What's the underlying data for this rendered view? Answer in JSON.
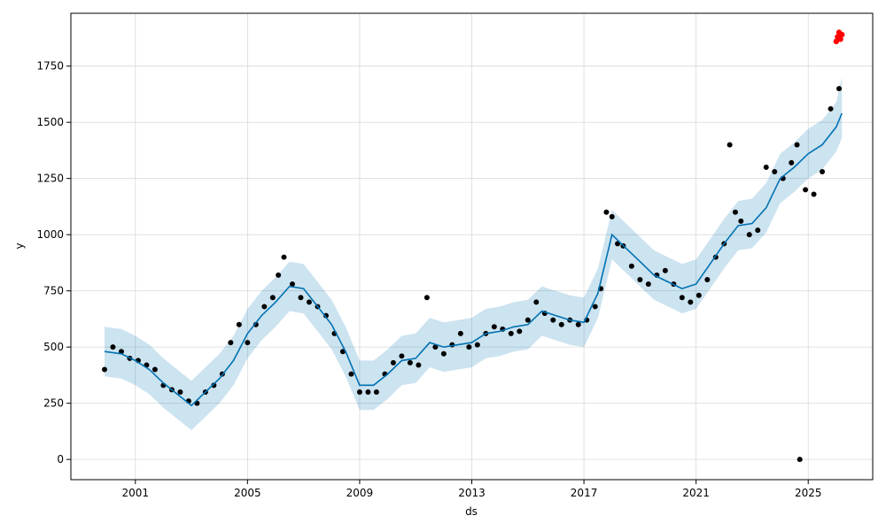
{
  "chart_data": {
    "type": "line",
    "title": "",
    "xlabel": "ds",
    "ylabel": "y",
    "xlim": [
      1998.7,
      2027.3
    ],
    "ylim": [
      -90,
      1985
    ],
    "x_ticks": [
      2001,
      2005,
      2009,
      2013,
      2017,
      2021,
      2025
    ],
    "x_tick_labels": [
      "2001",
      "2005",
      "2009",
      "2013",
      "2017",
      "2021",
      "2025"
    ],
    "y_ticks": [
      0,
      250,
      500,
      750,
      1000,
      1250,
      1500,
      1750
    ],
    "y_tick_labels": [
      "0",
      "250",
      "500",
      "750",
      "1000",
      "1250",
      "1500",
      "1750"
    ],
    "grid": true,
    "colors": {
      "observed": "#000000",
      "forecast": "#0072B2",
      "interval": "#0072B2",
      "highlight": "#ff0000",
      "grid": "#d9d9d9"
    },
    "series": [
      {
        "role": "forecast_yhat",
        "x": [
          1999.9,
          2000.5,
          2001.0,
          2001.5,
          2002.0,
          2002.5,
          2003.0,
          2003.5,
          2004.0,
          2004.5,
          2005.0,
          2005.5,
          2006.0,
          2006.5,
          2007.0,
          2007.5,
          2008.0,
          2008.5,
          2009.0,
          2009.5,
          2010.0,
          2010.5,
          2011.0,
          2011.5,
          2012.0,
          2012.5,
          2013.0,
          2013.5,
          2014.0,
          2014.5,
          2015.0,
          2015.5,
          2016.0,
          2016.5,
          2017.0,
          2017.5,
          2018.0,
          2018.5,
          2019.0,
          2019.5,
          2020.0,
          2020.5,
          2021.0,
          2021.5,
          2022.0,
          2022.5,
          2023.0,
          2023.5,
          2024.0,
          2024.5,
          2025.0,
          2025.5,
          2026.0,
          2026.2
        ],
        "y": [
          480,
          470,
          440,
          400,
          340,
          290,
          240,
          300,
          360,
          440,
          560,
          640,
          700,
          770,
          760,
          680,
          600,
          480,
          330,
          330,
          380,
          440,
          450,
          520,
          500,
          510,
          520,
          560,
          570,
          590,
          600,
          660,
          640,
          620,
          610,
          740,
          1000,
          940,
          880,
          820,
          790,
          760,
          780,
          870,
          960,
          1040,
          1050,
          1120,
          1250,
          1300,
          1360,
          1400,
          1480,
          1540
        ]
      },
      {
        "role": "forecast_upper",
        "x": [
          1999.9,
          2000.5,
          2001.0,
          2001.5,
          2002.0,
          2002.5,
          2003.0,
          2003.5,
          2004.0,
          2004.5,
          2005.0,
          2005.5,
          2006.0,
          2006.5,
          2007.0,
          2007.5,
          2008.0,
          2008.5,
          2009.0,
          2009.5,
          2010.0,
          2010.5,
          2011.0,
          2011.5,
          2012.0,
          2012.5,
          2013.0,
          2013.5,
          2014.0,
          2014.5,
          2015.0,
          2015.5,
          2016.0,
          2016.5,
          2017.0,
          2017.5,
          2018.0,
          2018.5,
          2019.0,
          2019.5,
          2020.0,
          2020.5,
          2021.0,
          2021.5,
          2022.0,
          2022.5,
          2023.0,
          2023.5,
          2024.0,
          2024.5,
          2025.0,
          2025.5,
          2026.0,
          2026.2
        ],
        "y": [
          590,
          580,
          550,
          510,
          450,
          400,
          350,
          410,
          470,
          550,
          670,
          750,
          810,
          880,
          870,
          790,
          710,
          590,
          440,
          440,
          490,
          550,
          560,
          630,
          610,
          620,
          630,
          670,
          680,
          700,
          710,
          770,
          750,
          730,
          720,
          850,
          1110,
          1050,
          990,
          930,
          900,
          870,
          890,
          980,
          1070,
          1150,
          1160,
          1230,
          1360,
          1410,
          1470,
          1510,
          1590,
          1700
        ]
      },
      {
        "role": "forecast_lower",
        "x": [
          1999.9,
          2000.5,
          2001.0,
          2001.5,
          2002.0,
          2002.5,
          2003.0,
          2003.5,
          2004.0,
          2004.5,
          2005.0,
          2005.5,
          2006.0,
          2006.5,
          2007.0,
          2007.5,
          2008.0,
          2008.5,
          2009.0,
          2009.5,
          2010.0,
          2010.5,
          2011.0,
          2011.5,
          2012.0,
          2012.5,
          2013.0,
          2013.5,
          2014.0,
          2014.5,
          2015.0,
          2015.5,
          2016.0,
          2016.5,
          2017.0,
          2017.5,
          2018.0,
          2018.5,
          2019.0,
          2019.5,
          2020.0,
          2020.5,
          2021.0,
          2021.5,
          2022.0,
          2022.5,
          2023.0,
          2023.5,
          2024.0,
          2024.5,
          2025.0,
          2025.5,
          2026.0,
          2026.2
        ],
        "y": [
          370,
          360,
          330,
          290,
          230,
          180,
          130,
          190,
          250,
          330,
          450,
          530,
          590,
          660,
          650,
          570,
          490,
          370,
          220,
          220,
          270,
          330,
          340,
          410,
          390,
          400,
          410,
          450,
          460,
          480,
          490,
          550,
          530,
          510,
          500,
          630,
          890,
          830,
          770,
          710,
          680,
          650,
          670,
          760,
          850,
          930,
          940,
          1010,
          1140,
          1190,
          1250,
          1290,
          1370,
          1430
        ]
      },
      {
        "role": "observed",
        "x": [
          1999.9,
          2000.2,
          2000.5,
          2000.8,
          2001.1,
          2001.4,
          2001.7,
          2002.0,
          2002.3,
          2002.6,
          2002.9,
          2003.2,
          2003.5,
          2003.8,
          2004.1,
          2004.4,
          2004.7,
          2005.0,
          2005.3,
          2005.6,
          2005.9,
          2006.1,
          2006.3,
          2006.6,
          2006.9,
          2007.2,
          2007.5,
          2007.8,
          2008.1,
          2008.4,
          2008.7,
          2009.0,
          2009.3,
          2009.6,
          2009.9,
          2010.2,
          2010.5,
          2010.8,
          2011.1,
          2011.4,
          2011.7,
          2012.0,
          2012.3,
          2012.6,
          2012.9,
          2013.2,
          2013.5,
          2013.8,
          2014.1,
          2014.4,
          2014.7,
          2015.0,
          2015.3,
          2015.6,
          2015.9,
          2016.2,
          2016.5,
          2016.8,
          2017.1,
          2017.4,
          2017.6,
          2017.8,
          2018.0,
          2018.2,
          2018.4,
          2018.7,
          2019.0,
          2019.3,
          2019.6,
          2019.9,
          2020.2,
          2020.5,
          2020.8,
          2021.1,
          2021.4,
          2021.7,
          2022.0,
          2022.2,
          2022.4,
          2022.6,
          2022.9,
          2023.2,
          2023.5,
          2023.8,
          2024.1,
          2024.4,
          2024.6,
          2024.9,
          2025.2,
          2025.5,
          2025.8,
          2026.1
        ],
        "y": [
          400,
          500,
          480,
          450,
          440,
          420,
          400,
          330,
          310,
          300,
          260,
          250,
          300,
          330,
          380,
          520,
          600,
          520,
          600,
          680,
          720,
          820,
          900,
          780,
          720,
          700,
          680,
          640,
          560,
          480,
          380,
          300,
          300,
          300,
          380,
          430,
          460,
          430,
          420,
          720,
          500,
          470,
          510,
          560,
          500,
          510,
          560,
          590,
          580,
          560,
          570,
          620,
          700,
          650,
          620,
          600,
          620,
          600,
          620,
          680,
          760,
          1100,
          1080,
          960,
          950,
          860,
          800,
          780,
          820,
          840,
          780,
          720,
          700,
          730,
          800,
          900,
          960,
          1400,
          1100,
          1060,
          1000,
          1020,
          1300,
          1280,
          1250,
          1320,
          1400,
          1200,
          1180,
          1280,
          1560,
          1650
        ]
      },
      {
        "role": "observed_recent",
        "x": [
          2026.0,
          2026.05,
          2026.1,
          2026.15,
          2026.2
        ],
        "y": [
          1860,
          1880,
          1900,
          1870,
          1890
        ]
      },
      {
        "role": "observed_outlier",
        "x": [
          2024.7
        ],
        "y": [
          0
        ]
      }
    ]
  }
}
